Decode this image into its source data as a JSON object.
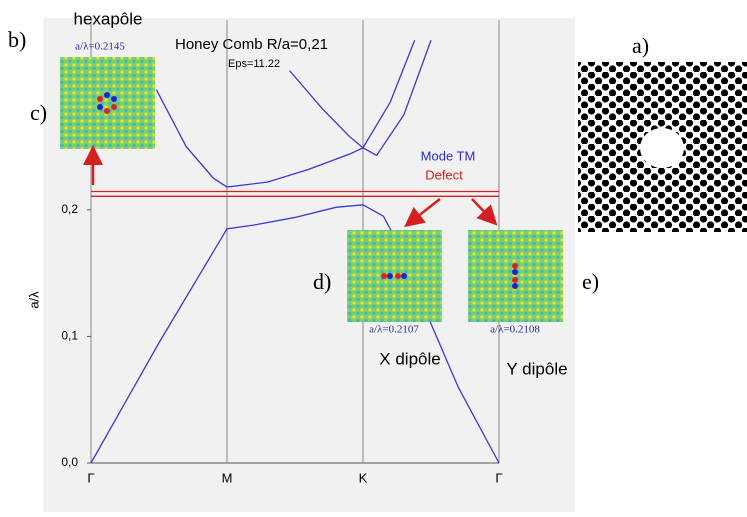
{
  "chart_data": {
    "type": "line",
    "title": "Honey Comb R/a=0,21",
    "subtitle": "Eps=11.22",
    "y_label": "a/λ",
    "xlim": [
      0,
      3
    ],
    "ylim": [
      0,
      0.35
    ],
    "xticks": [
      {
        "value": 0,
        "label": "Γ"
      },
      {
        "value": 1,
        "label": "M"
      },
      {
        "value": 2,
        "label": "K"
      },
      {
        "value": 3,
        "label": "Γ"
      }
    ],
    "yticks": [
      {
        "value": 0,
        "label": "0,0"
      },
      {
        "value": 0.1,
        "label": "0,1"
      },
      {
        "value": 0.2,
        "label": "0,2"
      }
    ],
    "grid": true,
    "series": [
      {
        "name": "Mode TM",
        "color": "#3a3ad0",
        "x": [
          0,
          0.5,
          1,
          1.2,
          1.5,
          1.8,
          2,
          2.15,
          2.3,
          2.5,
          2.7,
          3,
          null,
          0.48,
          0.7,
          0.9,
          1,
          1.3,
          1.6,
          1.9,
          2,
          2.2,
          2.38,
          null,
          1.46,
          1.7,
          1.9,
          2,
          2.1,
          2.3,
          2.5
        ],
        "values": [
          0,
          0.095,
          0.185,
          0.188,
          0.194,
          0.202,
          0.204,
          0.195,
          0.165,
          0.11,
          0.06,
          0,
          null,
          0.295,
          0.25,
          0.225,
          0.218,
          0.222,
          0.232,
          0.244,
          0.249,
          0.285,
          0.334,
          null,
          0.31,
          0.28,
          0.258,
          0.249,
          0.243,
          0.275,
          0.334
        ]
      },
      {
        "name": "Defect",
        "color": "#d42020",
        "x": [
          0,
          3,
          null,
          0,
          3
        ],
        "values": [
          0.2107,
          0.2107,
          null,
          0.2145,
          0.2145
        ]
      }
    ]
  },
  "figure": {
    "panel_a": "a)",
    "panel_b": "b)",
    "insets": [
      {
        "label": "c)",
        "caption": "a/λ=0.2145",
        "mode": "hexapôle"
      },
      {
        "label": "d)",
        "caption": "a/λ=0.2107",
        "mode": "X dipôle"
      },
      {
        "label": "e)",
        "caption": "a/λ=0.2108",
        "mode": "Y dipôle"
      }
    ]
  }
}
